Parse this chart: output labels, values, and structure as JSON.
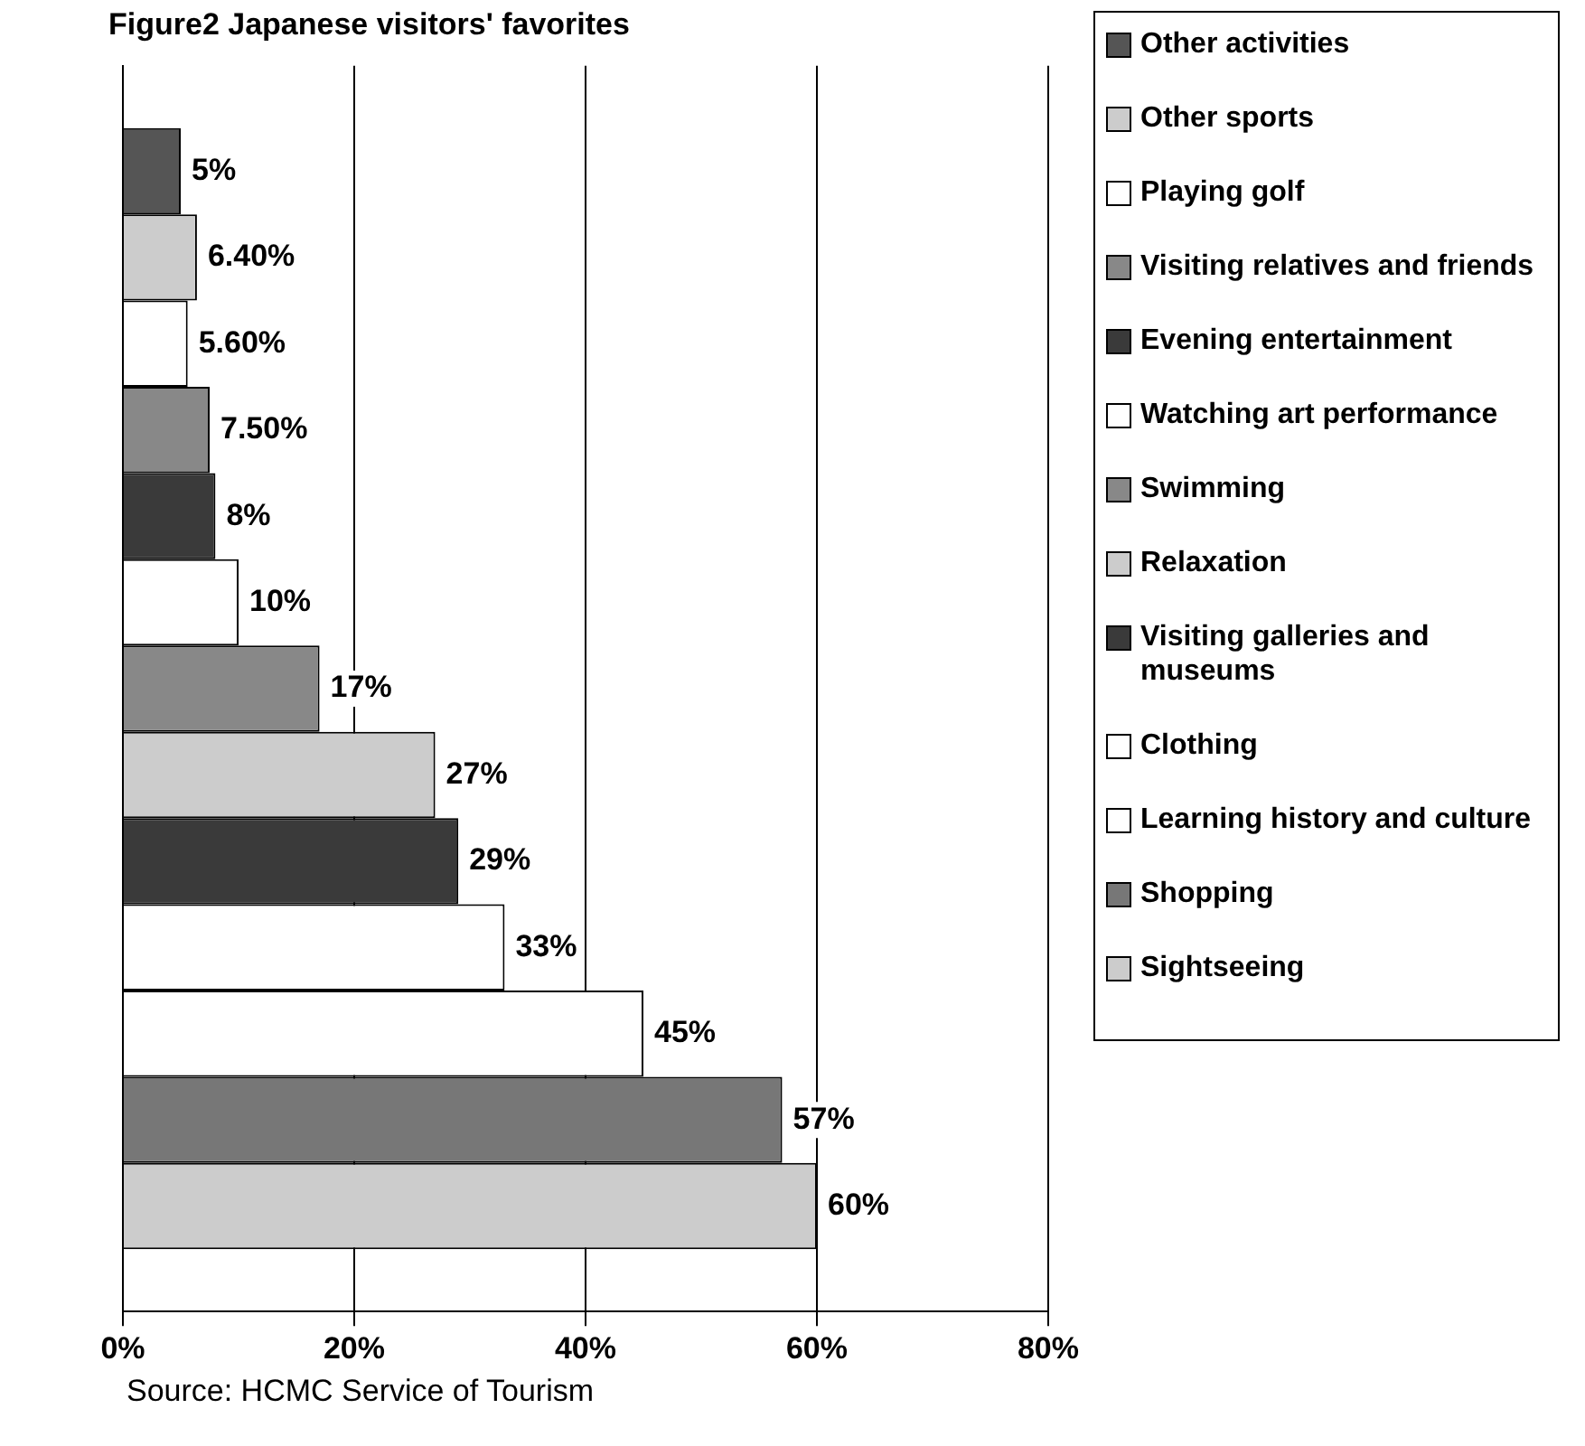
{
  "chart_data": {
    "type": "bar",
    "orientation": "horizontal",
    "title": "Figure2 Japanese visitors' favorites",
    "categories": [
      null
    ],
    "series": [
      {
        "name": "Other activities",
        "color": "#555555",
        "values": [
          5
        ],
        "value_labels": [
          "5%"
        ]
      },
      {
        "name": "Other sports",
        "color": "#cccccc",
        "values": [
          6.4
        ],
        "value_labels": [
          "6.40%"
        ]
      },
      {
        "name": "Playing golf",
        "color": "#ffffff",
        "values": [
          5.6
        ],
        "value_labels": [
          "5.60%"
        ]
      },
      {
        "name": "Visiting relatives and friends",
        "color": "#888888",
        "values": [
          7.5
        ],
        "value_labels": [
          "7.50%"
        ]
      },
      {
        "name": "Evening entertainment",
        "color": "#3a3a3a",
        "values": [
          8
        ],
        "value_labels": [
          "8%"
        ]
      },
      {
        "name": "Watching art performance",
        "color": "#ffffff",
        "values": [
          10
        ],
        "value_labels": [
          "10%"
        ]
      },
      {
        "name": "Swimming",
        "color": "#888888",
        "values": [
          17
        ],
        "value_labels": [
          "17%"
        ]
      },
      {
        "name": "Relaxation",
        "color": "#cccccc",
        "values": [
          27
        ],
        "value_labels": [
          "27%"
        ]
      },
      {
        "name": "Visiting galleries and museums",
        "color": "#3a3a3a",
        "values": [
          29
        ],
        "value_labels": [
          "29%"
        ]
      },
      {
        "name": "Clothing",
        "color": "#ffffff",
        "values": [
          33
        ],
        "value_labels": [
          "33%"
        ]
      },
      {
        "name": "Learning history and culture",
        "color": "#ffffff",
        "values": [
          45
        ],
        "value_labels": [
          "45%"
        ]
      },
      {
        "name": "Shopping",
        "color": "#777777",
        "values": [
          57
        ],
        "value_labels": [
          "57%"
        ]
      },
      {
        "name": "Sightseeing",
        "color": "#cccccc",
        "values": [
          60
        ],
        "value_labels": [
          "60%"
        ]
      }
    ],
    "xlim": [
      0,
      80
    ],
    "xticks": [
      {
        "value": 0,
        "label": "0%"
      },
      {
        "value": 20,
        "label": "20%"
      },
      {
        "value": 40,
        "label": "40%"
      },
      {
        "value": 60,
        "label": "60%"
      },
      {
        "value": 80,
        "label": "80%"
      }
    ],
    "grid": "x",
    "legend": "right",
    "tick_labels": "x",
    "annotations": [
      "Source: HCMC Service of Tourism"
    ]
  }
}
